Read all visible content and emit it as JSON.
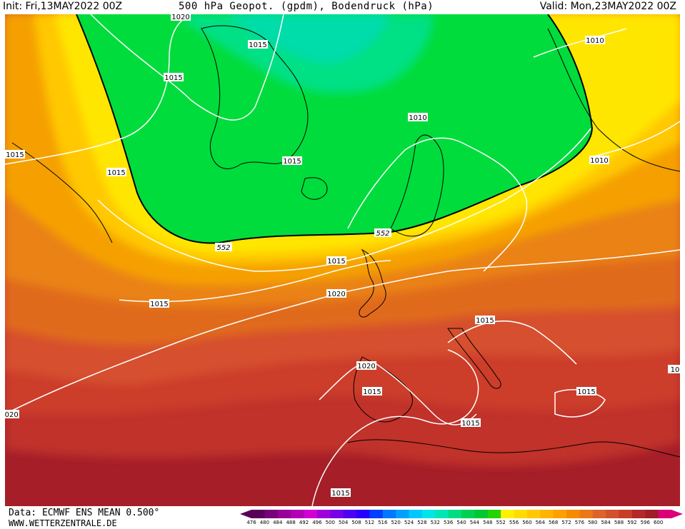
{
  "header": {
    "init": "Init: Fri,13MAY2022 00Z",
    "title": "500 hPa Geopot. (gpdm), Bodendruck (hPa)",
    "valid": "Valid: Mon,23MAY2022 00Z"
  },
  "footer": {
    "data_source": "Data: ECMWF ENS MEAN 0.500°",
    "website": "WWW.WETTERZENTRALE.DE"
  },
  "colorbar": {
    "values": [
      "476",
      "480",
      "484",
      "488",
      "492",
      "496",
      "500",
      "504",
      "508",
      "512",
      "516",
      "520",
      "524",
      "528",
      "532",
      "536",
      "540",
      "544",
      "548",
      "552",
      "556",
      "560",
      "564",
      "568",
      "572",
      "576",
      "580",
      "584",
      "588",
      "592",
      "596",
      "600"
    ],
    "colors": [
      "#5a005a",
      "#780078",
      "#960096",
      "#b400b4",
      "#d200d2",
      "#a000dc",
      "#7800e6",
      "#5000f0",
      "#2800ff",
      "#0040ff",
      "#0078ff",
      "#00a0ff",
      "#00c8ff",
      "#00e6e6",
      "#00e6b4",
      "#00dc82",
      "#00d250",
      "#00c832",
      "#28d200",
      "#fff000",
      "#ffdc00",
      "#ffc800",
      "#ffb400",
      "#ffa000",
      "#f58c00",
      "#eb7814",
      "#dc6428",
      "#d2502d",
      "#c83c28",
      "#b42828",
      "#a01e28",
      "#dc0078"
    ]
  },
  "map": {
    "contour_552_label": "552",
    "isobar_labels": [
      "1020",
      "1015",
      "1015",
      "1015",
      "1015",
      "1015",
      "1010",
      "1010",
      "1010",
      "1015",
      "1015",
      "1015",
      "1020",
      "1015",
      "1020",
      "1015",
      "1015",
      "1015",
      "1015",
      "1015",
      "1020",
      "10"
    ],
    "colors": {
      "green": "#00dc3c",
      "teal": "#00dca0",
      "yellow": "#fff000",
      "orange": "#f0a000",
      "red": "#d2502d",
      "darkred": "#a01e28"
    }
  }
}
